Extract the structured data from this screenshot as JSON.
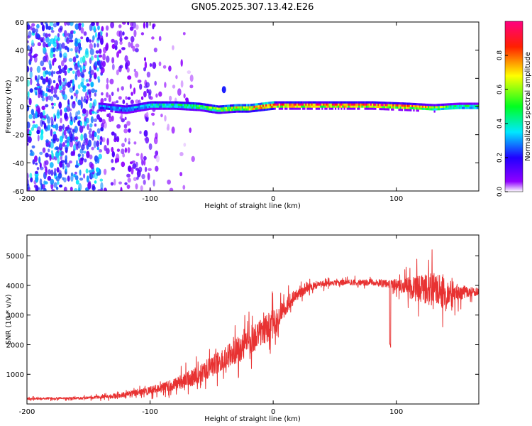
{
  "title": "GN05.2025.307.13.42.E26",
  "colors": {
    "line": "#e83232",
    "background": "#ffffff",
    "axis": "#000000",
    "colormap": [
      "#ffffff",
      "#9000ff",
      "#2000ff",
      "#00e8ff",
      "#00ff20",
      "#ffff00",
      "#ff2000",
      "#ff0080"
    ]
  },
  "chart_data": [
    {
      "type": "heatmap",
      "title": "GN05.2025.307.13.42.E26",
      "xlabel": "Height of straight line (km)",
      "ylabel": "Frequency (Hz)",
      "xlim": [
        -200,
        167
      ],
      "ylim": [
        -60,
        60
      ],
      "xticks": [
        -200,
        -100,
        0,
        100
      ],
      "yticks": [
        60,
        40,
        20,
        0,
        -20,
        -40,
        -60
      ],
      "colorbar": {
        "label": "Normalized spectral amplitude",
        "range": [
          0.0,
          1.0
        ],
        "ticks": [
          "0.0",
          "0.2",
          "0.4",
          "0.6",
          "0.8"
        ]
      },
      "ridge": [
        {
          "x": -140,
          "y": 0,
          "amp": 0.3
        },
        {
          "x": -120,
          "y": -2,
          "amp": 0.35
        },
        {
          "x": -100,
          "y": 1,
          "amp": 0.4
        },
        {
          "x": -80,
          "y": 1,
          "amp": 0.45
        },
        {
          "x": -60,
          "y": 0,
          "amp": 0.55
        },
        {
          "x": -45,
          "y": -2,
          "amp": 0.6
        },
        {
          "x": -30,
          "y": -1,
          "amp": 0.7
        },
        {
          "x": -20,
          "y": -1,
          "amp": 0.8
        },
        {
          "x": 0,
          "y": 1,
          "amp": 0.95
        },
        {
          "x": 40,
          "y": 1,
          "amp": 1.0
        },
        {
          "x": 80,
          "y": 1,
          "amp": 1.0
        },
        {
          "x": 110,
          "y": 0,
          "amp": 0.9
        },
        {
          "x": 130,
          "y": -1,
          "amp": 0.7
        },
        {
          "x": 150,
          "y": 0,
          "amp": 0.5
        },
        {
          "x": 167,
          "y": 0,
          "amp": 0.5
        }
      ],
      "noise_regions": [
        {
          "x_from": -200,
          "x_to": -140,
          "density": 0.8,
          "amp": 0.25
        },
        {
          "x_from": -140,
          "x_to": -95,
          "density": 0.35,
          "amp": 0.1
        },
        {
          "x_from": -95,
          "x_to": -65,
          "density": 0.12,
          "amp": 0.05
        }
      ]
    },
    {
      "type": "line",
      "xlabel": "Height of straight line (km)",
      "ylabel": "SNR (10 * v/v)",
      "xlim": [
        -200,
        167
      ],
      "ylim": [
        0,
        5700
      ],
      "xticks": [
        -200,
        -100,
        0,
        100
      ],
      "yticks": [
        1000,
        2000,
        3000,
        4000,
        5000
      ],
      "series": [
        {
          "name": "SNR",
          "x": [
            -200,
            -150,
            -140,
            -120,
            -100,
            -80,
            -60,
            -40,
            -20,
            0,
            10,
            20,
            30,
            40,
            60,
            80,
            95,
            100,
            110,
            120,
            130,
            140,
            150,
            167
          ],
          "y": [
            180,
            200,
            230,
            320,
            450,
            650,
            1000,
            1500,
            2100,
            2700,
            3300,
            3700,
            3950,
            4050,
            4100,
            4100,
            4050,
            4000,
            3950,
            3850,
            3800,
            3800,
            3750,
            3800
          ],
          "noise": [
            50,
            60,
            80,
            140,
            200,
            300,
            450,
            550,
            650,
            700,
            450,
            250,
            180,
            150,
            130,
            150,
            200,
            250,
            500,
            700,
            900,
            800,
            400,
            150
          ]
        }
      ]
    }
  ]
}
